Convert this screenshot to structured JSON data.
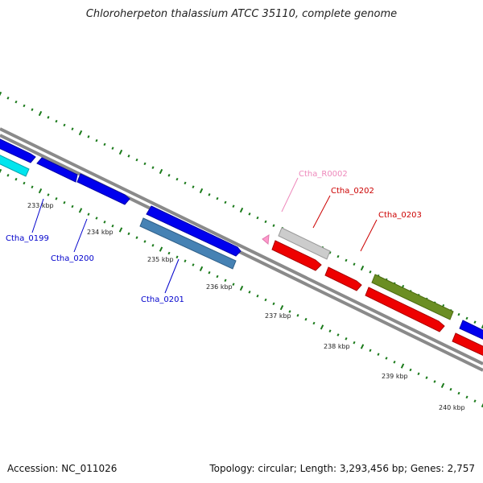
{
  "title": "Chloroherpeton thalassium ATCC 35110, complete genome",
  "footer": {
    "accession": "Accession: NC_011026",
    "topology": "Topology: circular; Length: 3,293,456 bp; Genes: 2,757"
  },
  "colors": {
    "backbone": "#8a8a8a",
    "tick": "#1a7a1a",
    "blue_label": "#0000cc",
    "red_label": "#cc0000",
    "pink_label": "#ee88bb"
  },
  "kbp_ticks": [
    {
      "kbp": 233,
      "label": "233 kbp"
    },
    {
      "kbp": 234,
      "label": "234 kbp"
    },
    {
      "kbp": 235,
      "label": "235 kbp"
    },
    {
      "kbp": 236,
      "label": "236 kbp"
    },
    {
      "kbp": 237,
      "label": "237 kbp"
    },
    {
      "kbp": 238,
      "label": "238 kbp"
    },
    {
      "kbp": 239,
      "label": "239 kbp"
    },
    {
      "kbp": 240,
      "label": "240 kbp"
    }
  ],
  "genes": [
    {
      "label": "Ctha_0199",
      "color": "#0000cc"
    },
    {
      "label": "Ctha_0200",
      "color": "#0000cc"
    },
    {
      "label": "Ctha_0201",
      "color": "#0000cc"
    },
    {
      "label": "Ctha_R0002",
      "color": "#ee88bb"
    },
    {
      "label": "Ctha_0202",
      "color": "#cc0000"
    },
    {
      "label": "Ctha_0203",
      "color": "#cc0000"
    }
  ]
}
